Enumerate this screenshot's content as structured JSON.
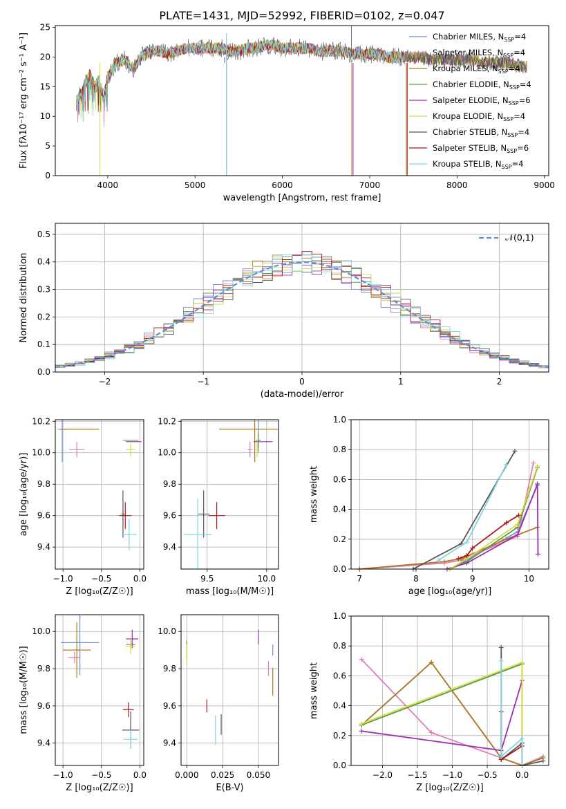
{
  "figure_title": "PLATE=1431, MJD=52992, FIBERID=0102, z=0.047",
  "models": [
    {
      "label": "Chabrier MILES, N",
      "nssp": "4",
      "color": "#6f8fdb"
    },
    {
      "label": "Salpeter MILES, N",
      "nssp": "4",
      "color": "#e07cbc"
    },
    {
      "label": "Kroupa MILES, N",
      "nssp": "4",
      "color": "#b07820"
    },
    {
      "label": "Chabrier ELODIE, N",
      "nssp": "4",
      "color": "#5a9a48"
    },
    {
      "label": "Salpeter ELODIE, N",
      "nssp": "6",
      "color": "#9b2fae"
    },
    {
      "label": "Kroupa ELODIE, N",
      "nssp": "4",
      "color": "#d4dd3a"
    },
    {
      "label": "Chabrier STELIB, N",
      "nssp": "4",
      "color": "#555555"
    },
    {
      "label": "Salpeter STELIB, N",
      "nssp": "6",
      "color": "#b01818"
    },
    {
      "label": "Kroupa STELIB, N",
      "nssp": "4",
      "color": "#7fd6de"
    }
  ],
  "legend_sub": "SSP",
  "chart_data": [
    {
      "type": "line",
      "name": "spectrum",
      "xlabel": "wavelength [Angstrom, rest frame]",
      "ylabel": "Flux [f",
      "ylabel_full": "Flux [fλ10⁻¹⁷ erg cm⁻² s⁻¹ A⁻¹]",
      "xlim": [
        3400,
        9050
      ],
      "ylim": [
        0,
        25.3
      ],
      "xticks": [
        4000,
        5000,
        6000,
        7000,
        8000,
        9000
      ],
      "yticks": [
        0,
        5,
        10,
        15,
        20,
        25
      ],
      "x": [
        3640,
        3700,
        3750,
        3800,
        3850,
        3900,
        3950,
        4000,
        4100,
        4200,
        4300,
        4400,
        4500,
        4600,
        4700,
        4800,
        4900,
        5000,
        5100,
        5200,
        5300,
        5400,
        5500,
        5600,
        5700,
        5800,
        5900,
        6000,
        6100,
        6200,
        6300,
        6400,
        6500,
        6600,
        6700,
        6800,
        6900,
        7000,
        7100,
        7200,
        7300,
        7400,
        7500,
        7600,
        7700,
        7800,
        7900,
        8000,
        8100,
        8200,
        8300,
        8400,
        8500,
        8600,
        8700,
        8800
      ],
      "y": [
        12.5,
        14,
        16,
        17,
        15,
        16,
        13,
        16.5,
        19,
        19.5,
        18,
        20.5,
        21,
        21,
        20.5,
        21,
        21.5,
        21.5,
        21.5,
        21.5,
        21.5,
        21,
        21,
        21.5,
        21.5,
        22,
        22,
        21.5,
        21.5,
        21.5,
        21.5,
        21,
        21,
        21,
        21,
        20.5,
        20.5,
        20.5,
        20.5,
        20,
        20,
        20,
        20,
        20,
        19.5,
        19.5,
        19.5,
        19.5,
        19.5,
        19.5,
        19,
        19,
        19,
        19,
        18.5,
        18.5
      ],
      "legend": "upper right"
    },
    {
      "type": "bar",
      "name": "residual histogram",
      "xlabel": "(data-model)/error",
      "ylabel": "Normed distribution",
      "xlim": [
        -2.5,
        2.5
      ],
      "ylim": [
        0,
        0.54
      ],
      "xticks": [
        -2,
        -1,
        0,
        1,
        2
      ],
      "yticks": [
        0.0,
        0.1,
        0.2,
        0.3,
        0.4,
        0.5
      ],
      "bin_width": 0.1,
      "gaussian_label": "𝒩(0,1)",
      "legend": "upper right",
      "grid": true
    },
    {
      "type": "scatter",
      "name": "age vs Z",
      "xlabel": "Z [log₁₀(Z/Z☉)]",
      "ylabel": "age  [log₁₀(age/yr)]",
      "xlim": [
        -1.1,
        0.05
      ],
      "ylim": [
        9.26,
        10.21
      ],
      "xticks": [
        -1.0,
        -0.5,
        0.0
      ],
      "yticks": [
        9.4,
        9.6,
        9.8,
        10.0,
        10.2
      ],
      "points": [
        {
          "m": 0,
          "x": -1.01,
          "xe": 0.06,
          "y": 10.15,
          "ye": 0.42
        },
        {
          "m": 1,
          "x": -0.82,
          "xe": 0.1,
          "y": 10.02,
          "ye": 0.1
        },
        {
          "m": 2,
          "x": -0.78,
          "xe": 0.25,
          "y": 10.15,
          "ye": 0.0
        },
        {
          "m": 3,
          "x": -0.12,
          "xe": 0.1,
          "y": 10.08,
          "ye": 0.0
        },
        {
          "m": 4,
          "x": -0.08,
          "xe": 0.1,
          "y": 10.07,
          "ye": 0.0
        },
        {
          "m": 5,
          "x": -0.12,
          "xe": 0.06,
          "y": 10.02,
          "ye": 0.08
        },
        {
          "m": 6,
          "x": -0.22,
          "xe": 0.02,
          "y": 9.61,
          "ye": 0.3
        },
        {
          "m": 7,
          "x": -0.19,
          "xe": 0.08,
          "y": 9.6,
          "ye": 0.17
        },
        {
          "m": 8,
          "x": -0.14,
          "xe": 0.1,
          "y": 9.48,
          "ye": 0.2
        }
      ]
    },
    {
      "type": "scatter",
      "name": "age vs mass",
      "xlabel": "mass [log₁₀(M/M☉)]",
      "ylabel": "",
      "xlim": [
        9.28,
        10.1
      ],
      "ylim": [
        9.26,
        10.21
      ],
      "xticks": [
        9.5,
        10.0
      ],
      "yticks": [
        9.4,
        9.6,
        9.8,
        10.0,
        10.2
      ],
      "points": [
        {
          "m": 0,
          "x": 9.93,
          "xe": 0.02,
          "y": 10.15,
          "ye": 0.3
        },
        {
          "m": 1,
          "x": 9.86,
          "xe": 0.02,
          "y": 10.02,
          "ye": 0.1
        },
        {
          "m": 2,
          "x": 9.9,
          "xe": 0.3,
          "y": 10.15,
          "ye": 0.42
        },
        {
          "m": 3,
          "x": 9.93,
          "xe": 0.02,
          "y": 10.08,
          "ye": 0.1
        },
        {
          "m": 4,
          "x": 9.97,
          "xe": 0.08,
          "y": 10.07,
          "ye": 0.0
        },
        {
          "m": 5,
          "x": 9.92,
          "xe": 0.02,
          "y": 10.02,
          "ye": 0.1
        },
        {
          "m": 6,
          "x": 9.47,
          "xe": 0.05,
          "y": 9.61,
          "ye": 0.3
        },
        {
          "m": 7,
          "x": 9.58,
          "xe": 0.07,
          "y": 9.6,
          "ye": 0.17
        },
        {
          "m": 8,
          "x": 9.42,
          "xe": 0.12,
          "y": 9.48,
          "ye": 0.46
        }
      ]
    },
    {
      "type": "line",
      "name": "mass weight vs age",
      "xlabel": "age  [log₁₀(age/yr)]",
      "ylabel": "mass weight",
      "xlim": [
        6.85,
        10.35
      ],
      "ylim": [
        0,
        1.0
      ],
      "xticks": [
        7,
        8,
        9,
        10
      ],
      "yticks": [
        0.0,
        0.2,
        0.4,
        0.6,
        0.8,
        1.0
      ],
      "grid": true,
      "series": [
        {
          "m": 0,
          "x": [
            8.6,
            8.9,
            9.8,
            10.15
          ],
          "y": [
            0.0,
            0.06,
            0.25,
            0.56
          ]
        },
        {
          "m": 1,
          "x": [
            7.0,
            8.5,
            8.8,
            9.8,
            10.08
          ],
          "y": [
            0.0,
            0.04,
            0.06,
            0.22,
            0.71
          ]
        },
        {
          "m": 2,
          "x": [
            7.0,
            8.5,
            8.8,
            9.6,
            10.15
          ],
          "y": [
            0.0,
            0.05,
            0.07,
            0.2,
            0.28
          ]
        },
        {
          "m": 3,
          "x": [
            8.6,
            8.9,
            9.8,
            10.15
          ],
          "y": [
            0.0,
            0.05,
            0.28,
            0.68
          ]
        },
        {
          "m": 4,
          "x": [
            8.55,
            8.9,
            9.8,
            10.15,
            10.16
          ],
          "y": [
            0.0,
            0.04,
            0.23,
            0.57,
            0.1
          ]
        },
        {
          "m": 5,
          "x": [
            8.6,
            8.9,
            9.8,
            10.15
          ],
          "y": [
            0.0,
            0.07,
            0.3,
            0.69
          ]
        },
        {
          "m": 6,
          "x": [
            7.95,
            8.8,
            9.75
          ],
          "y": [
            0.0,
            0.17,
            0.79
          ]
        },
        {
          "m": 7,
          "x": [
            8.75,
            8.9,
            9.0,
            9.6,
            9.82
          ],
          "y": [
            0.07,
            0.09,
            0.14,
            0.31,
            0.36
          ]
        },
        {
          "m": 8,
          "x": [
            8.4,
            8.9,
            9.6
          ],
          "y": [
            0.06,
            0.18,
            0.7
          ]
        }
      ]
    },
    {
      "type": "scatter",
      "name": "mass vs Z",
      "xlabel": "Z [log₁₀(Z/Z☉)]",
      "ylabel": "mass [log₁₀(M/M☉)]",
      "xlim": [
        -1.1,
        0.05
      ],
      "ylim": [
        9.28,
        10.09
      ],
      "xticks": [
        -1.0,
        -0.5,
        0.0
      ],
      "yticks": [
        9.4,
        9.6,
        9.8,
        10.0
      ],
      "points": [
        {
          "m": 0,
          "x": -0.78,
          "xe": 0.25,
          "y": 9.94,
          "ye": 0.35
        },
        {
          "m": 1,
          "x": -0.85,
          "xe": 0.08,
          "y": 9.86,
          "ye": 0.06
        },
        {
          "m": 2,
          "x": -0.82,
          "xe": 0.18,
          "y": 9.9,
          "ye": 0.3
        },
        {
          "m": 3,
          "x": -0.12,
          "xe": 0.06,
          "y": 9.93,
          "ye": 0.06
        },
        {
          "m": 4,
          "x": -0.1,
          "xe": 0.08,
          "y": 9.96,
          "ye": 0.1
        },
        {
          "m": 5,
          "x": -0.12,
          "xe": 0.06,
          "y": 9.92,
          "ye": 0.08
        },
        {
          "m": 6,
          "x": -0.12,
          "xe": 0.11,
          "y": 9.47,
          "ye": 0.2
        },
        {
          "m": 7,
          "x": -0.15,
          "xe": 0.07,
          "y": 9.58,
          "ye": 0.08
        },
        {
          "m": 8,
          "x": -0.12,
          "xe": 0.09,
          "y": 9.42,
          "ye": 0.1
        }
      ]
    },
    {
      "type": "scatter",
      "name": "mass vs E(B-V)",
      "xlabel": "E(B-V)",
      "ylabel": "",
      "xlim": [
        -0.004,
        0.064
      ],
      "ylim": [
        9.28,
        10.09
      ],
      "xticks": [
        0.0,
        0.025,
        0.05
      ],
      "yticks": [
        9.4,
        9.6,
        9.8,
        10.0
      ],
      "points": [
        {
          "m": 0,
          "x": 0.06,
          "y": 9.9,
          "ye": 0.06
        },
        {
          "m": 1,
          "x": 0.057,
          "y": 9.8,
          "ye": 0.08
        },
        {
          "m": 2,
          "x": 0.06,
          "y": 9.73,
          "ye": 0.15
        },
        {
          "m": 3,
          "x": 0.0,
          "y": 9.9,
          "ye": 0.1
        },
        {
          "m": 4,
          "x": 0.05,
          "y": 9.97,
          "ye": 0.08
        },
        {
          "m": 5,
          "x": 0.0,
          "y": 9.88,
          "ye": 0.1
        },
        {
          "m": 6,
          "x": 0.024,
          "y": 9.5,
          "ye": 0.11
        },
        {
          "m": 7,
          "x": 0.014,
          "y": 9.6,
          "ye": 0.07
        },
        {
          "m": 8,
          "x": 0.02,
          "y": 9.47,
          "ye": 0.16
        }
      ]
    },
    {
      "type": "line",
      "name": "mass weight vs Z",
      "xlabel": "Z [log₁₀(Z/Z☉)]",
      "ylabel": "mass weight",
      "xlim": [
        -2.45,
        0.38
      ],
      "ylim": [
        0,
        1.0
      ],
      "xticks": [
        -2.0,
        -1.5,
        -1.0,
        -0.5,
        0.0
      ],
      "yticks": [
        0.0,
        0.2,
        0.4,
        0.6,
        0.8,
        1.0
      ],
      "grid": true,
      "series": [
        {
          "m": 0,
          "x": [
            -2.3,
            -1.3,
            -0.3,
            0.0
          ],
          "y": [
            0.27,
            0.69,
            0.05,
            0.0
          ]
        },
        {
          "m": 1,
          "x": [
            -2.3,
            -1.3,
            0.0,
            0.3
          ],
          "y": [
            0.71,
            0.22,
            0.0,
            0.06
          ]
        },
        {
          "m": 2,
          "x": [
            -2.3,
            -1.3,
            -0.3,
            0.0,
            0.3
          ],
          "y": [
            0.27,
            0.69,
            0.05,
            0.0,
            0.05
          ]
        },
        {
          "m": 3,
          "x": [
            -2.3,
            0.0,
            0.0
          ],
          "y": [
            0.27,
            0.68,
            0.0
          ]
        },
        {
          "m": 4,
          "x": [
            -2.3,
            -0.3,
            0.0,
            0.0
          ],
          "y": [
            0.23,
            0.1,
            0.57,
            0.0
          ]
        },
        {
          "m": 5,
          "x": [
            -2.3,
            0.0,
            0.0
          ],
          "y": [
            0.28,
            0.69,
            0.0
          ]
        },
        {
          "m": 6,
          "x": [
            -0.3,
            -0.3,
            0.0,
            0.0,
            0.3
          ],
          "y": [
            0.79,
            0.04,
            0.15,
            0.0,
            0.03
          ]
        },
        {
          "m": 7,
          "x": [
            -0.3,
            -0.3,
            0.0,
            0.0
          ],
          "y": [
            0.36,
            0.04,
            0.13,
            0.0
          ]
        },
        {
          "m": 8,
          "x": [
            -0.3,
            -0.3,
            0.0,
            0.0
          ],
          "y": [
            0.7,
            0.06,
            0.18,
            0.0
          ]
        }
      ]
    }
  ]
}
